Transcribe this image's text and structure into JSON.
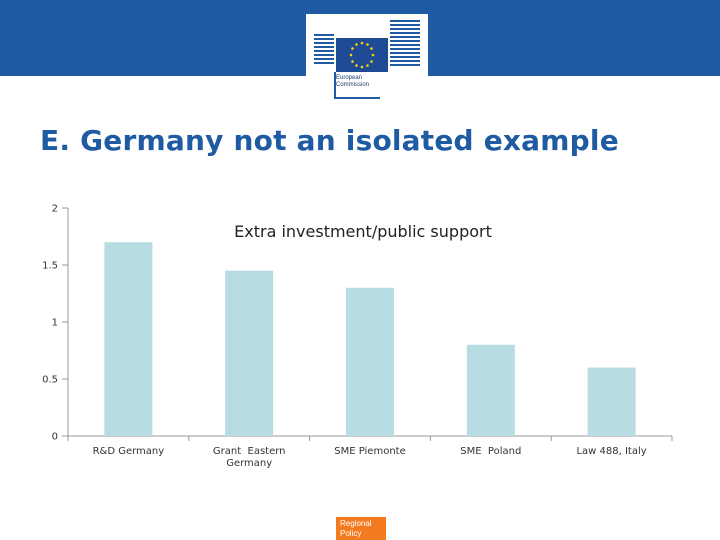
{
  "header": {
    "logo_text_line1": "European",
    "logo_text_line2": "Commission"
  },
  "slide": {
    "title": "E. Germany not an isolated example"
  },
  "footer": {
    "badge_line1": "Regional",
    "badge_line2": "Policy"
  },
  "colors": {
    "header_blue": "#1f5ba3",
    "bar": "#b7dde3",
    "footer_orange": "#f47a20"
  },
  "chart_data": {
    "type": "bar",
    "title": "Extra investment/public support",
    "categories": [
      [
        "R&D Germany"
      ],
      [
        "Grant  Eastern",
        "Germany"
      ],
      [
        "SME Piemonte"
      ],
      [
        "SME  Poland"
      ],
      [
        "Law 488, Italy"
      ]
    ],
    "values": [
      1.7,
      1.45,
      1.3,
      0.8,
      0.6
    ],
    "ylim": [
      0,
      2
    ],
    "yticks": [
      "0",
      "0.5",
      "1",
      "1.5",
      "2"
    ],
    "grid": false
  }
}
